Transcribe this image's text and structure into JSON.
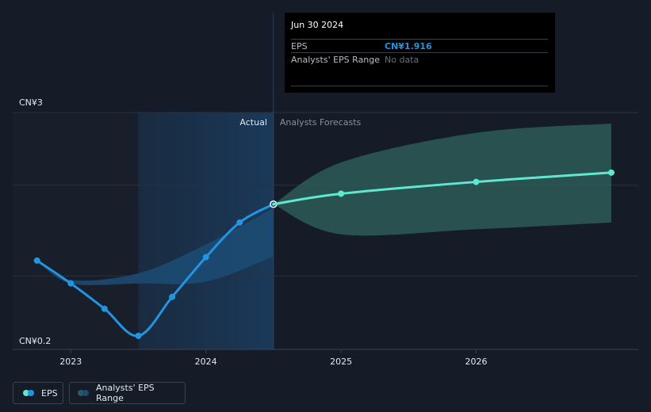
{
  "chart_data": {
    "type": "line",
    "y_axis": {
      "top_label": "CN¥3",
      "bottom_label": "CN¥0.2",
      "ylim": [
        0.2,
        3.0
      ]
    },
    "x_ticks": [
      {
        "label": "2023",
        "x": 2023.0
      },
      {
        "label": "2024",
        "x": 2024.0
      },
      {
        "label": "2025",
        "x": 2025.0
      },
      {
        "label": "2026",
        "x": 2026.0
      }
    ],
    "xlim": [
      2022.57,
      2027.2
    ],
    "section_labels": {
      "actual": "Actual",
      "forecast": "Analysts Forecasts"
    },
    "divider_x": 2024.5,
    "actual_shade_start": 2023.5,
    "series": [
      {
        "name": "EPS",
        "color": "#2394df",
        "points": [
          {
            "x": 2022.75,
            "y": 1.25
          },
          {
            "x": 2023.0,
            "y": 0.98
          },
          {
            "x": 2023.25,
            "y": 0.68
          },
          {
            "x": 2023.5,
            "y": 0.36
          },
          {
            "x": 2023.75,
            "y": 0.82
          },
          {
            "x": 2024.0,
            "y": 1.29
          },
          {
            "x": 2024.25,
            "y": 1.7
          },
          {
            "x": 2024.5,
            "y": 1.916
          }
        ]
      },
      {
        "name": "Forecast",
        "color": "#5ee8d2",
        "points": [
          {
            "x": 2024.5,
            "y": 1.916
          },
          {
            "x": 2025.0,
            "y": 2.04
          },
          {
            "x": 2026.0,
            "y": 2.18
          },
          {
            "x": 2027.0,
            "y": 2.29
          }
        ]
      }
    ],
    "past_range": {
      "upper": [
        [
          2022.75,
          1.25
        ],
        [
          2023.0,
          1.02
        ],
        [
          2023.5,
          1.1
        ],
        [
          2024.0,
          1.44
        ],
        [
          2024.5,
          1.87
        ]
      ],
      "lower": [
        [
          2022.75,
          1.25
        ],
        [
          2023.0,
          0.98
        ],
        [
          2023.5,
          0.98
        ],
        [
          2024.0,
          1.0
        ],
        [
          2024.5,
          1.3
        ]
      ]
    },
    "forecast_range": {
      "upper": [
        [
          2024.5,
          1.916
        ],
        [
          2025.0,
          2.41
        ],
        [
          2026.0,
          2.76
        ],
        [
          2027.0,
          2.87
        ]
      ],
      "lower": [
        [
          2024.5,
          1.916
        ],
        [
          2025.0,
          1.56
        ],
        [
          2026.0,
          1.62
        ],
        [
          2027.0,
          1.7
        ]
      ]
    }
  },
  "tooltip": {
    "date": "Jun 30 2024",
    "rows": [
      {
        "label": "EPS",
        "value": "CN¥1.916"
      },
      {
        "label": "Analysts' EPS Range",
        "value": "No data"
      }
    ]
  },
  "legend": {
    "eps_label": "EPS",
    "range_label": "Analysts' EPS Range"
  },
  "colors": {
    "eps": "#2394df",
    "forecast": "#5ee8d2",
    "forecast_band": "#2d5a58",
    "actual_band": "#1c4c74"
  }
}
